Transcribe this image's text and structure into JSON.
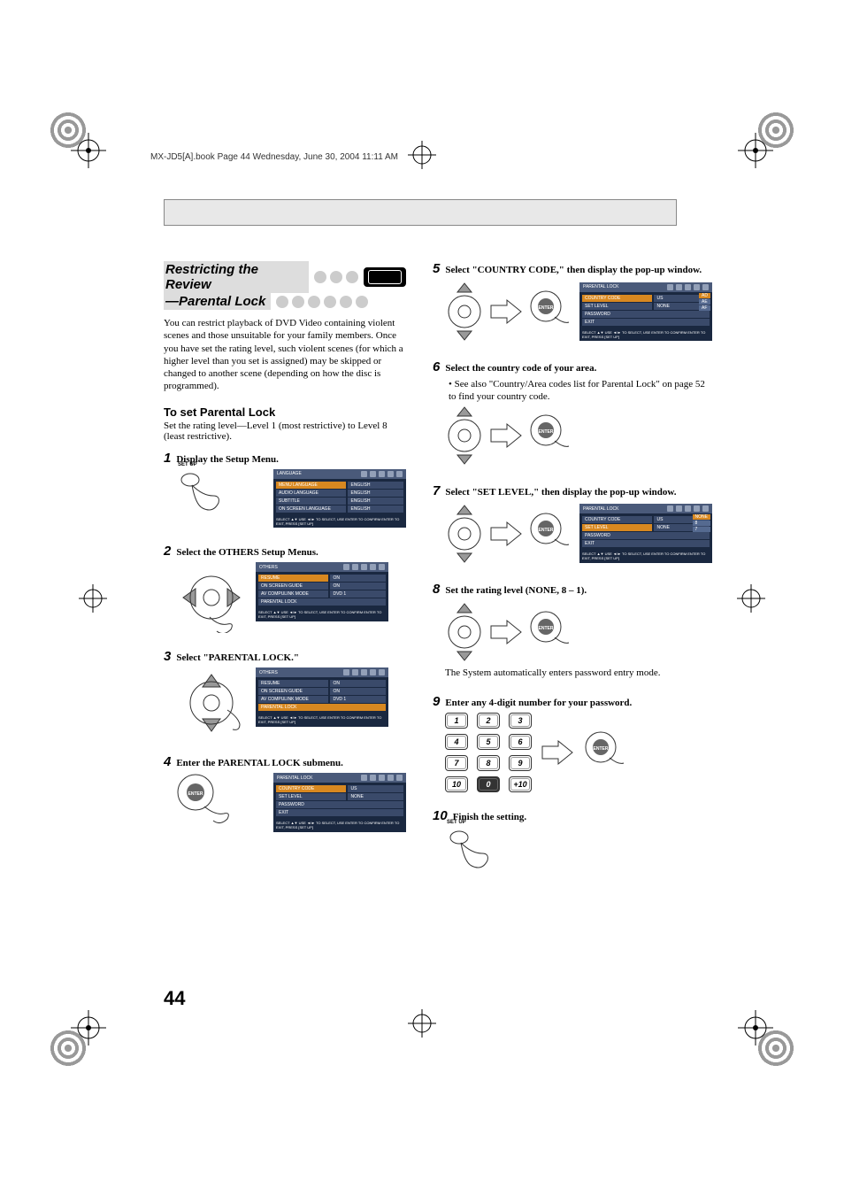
{
  "header": "MX-JD5[A].book  Page 44  Wednesday, June 30, 2004  11:11 AM",
  "pageNumber": "44",
  "heading": {
    "line1": "Restricting the Review",
    "line2": "—Parental Lock"
  },
  "intro": "You can restrict playback of DVD Video containing violent scenes and those unsuitable for your family members. Once you have set the rating level, such violent scenes (for which a higher level than you set is assigned) may be skipped or changed to another scene (depending on how the disc is programmed).",
  "subHeading": "To set Parental Lock",
  "lead": "Set the rating level—Level 1 (most restrictive) to Level 8 (least restrictive).",
  "buttons": {
    "setup": "SET UP",
    "enter": "ENTER"
  },
  "steps": {
    "s1": {
      "num": "1",
      "text": "Display the Setup Menu."
    },
    "s2": {
      "num": "2",
      "text": "Select the OTHERS Setup Menus."
    },
    "s3": {
      "num": "3",
      "text": "Select \"PARENTAL LOCK.\""
    },
    "s4": {
      "num": "4",
      "text": "Enter the PARENTAL LOCK submenu."
    },
    "s5": {
      "num": "5",
      "text": "Select \"COUNTRY CODE,\" then display the pop-up window."
    },
    "s6": {
      "num": "6",
      "text": "Select the country code of your area.",
      "sub": "• See also \"Country/Area codes list for Parental Lock\" on page 52 to find your country code."
    },
    "s7": {
      "num": "7",
      "text": "Select \"SET LEVEL,\" then display the pop-up window."
    },
    "s8": {
      "num": "8",
      "text": "Set the rating level (NONE, 8 – 1)."
    },
    "s9": {
      "num": "9",
      "text": "Enter any 4-digit number for your password."
    },
    "s10": {
      "num": "10",
      "text": "Finish the setting."
    }
  },
  "note8": "The System automatically enters password entry mode.",
  "keys": [
    "1",
    "2",
    "3",
    "4",
    "5",
    "6",
    "7",
    "8",
    "9",
    "10",
    "0",
    "+10"
  ],
  "osd": {
    "foot": "SELECT ▲▼   USE ◄/► TO SELECT, USE ENTER TO CONFIRM\nENTER     TO EXIT, PRESS [SET UP]",
    "language": {
      "title": "LANGUAGE",
      "rows": [
        [
          "MENU LANGUAGE",
          "ENGLISH"
        ],
        [
          "AUDIO LANGUAGE",
          "ENGLISH"
        ],
        [
          "SUBTITLE",
          "ENGLISH"
        ],
        [
          "ON SCREEN LANGUAGE",
          "ENGLISH"
        ]
      ]
    },
    "others": {
      "title": "OTHERS",
      "rows": [
        [
          "RESUME",
          "ON"
        ],
        [
          "ON SCREEN GUIDE",
          "ON"
        ],
        [
          "AV COMPULINK MODE",
          "DVD 1"
        ],
        [
          "PARENTAL LOCK",
          ""
        ]
      ]
    },
    "parental": {
      "title": "PARENTAL LOCK",
      "rows": [
        [
          "COUNTRY CODE",
          "US"
        ],
        [
          "SET LEVEL",
          "NONE"
        ],
        [
          "PASSWORD",
          ""
        ],
        [
          "EXIT",
          ""
        ]
      ]
    },
    "popup_cc": [
      "AD",
      "AE",
      "AF"
    ],
    "popup_lvl": [
      "NONE",
      "8",
      "7"
    ],
    "colors": {
      "osd_head": "#4a5a7a",
      "osd_body": "#1a2840",
      "osd_cell": "#3a4a6a",
      "osd_hl": "#d88820"
    }
  }
}
